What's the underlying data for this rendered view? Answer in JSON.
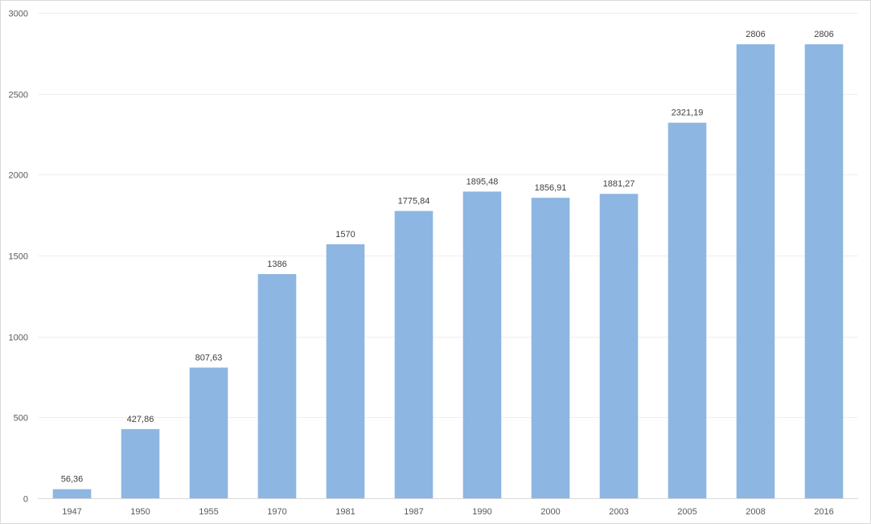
{
  "chart_data": {
    "type": "bar",
    "title": "",
    "xlabel": "",
    "ylabel": "",
    "categories": [
      "1947",
      "1950",
      "1955",
      "1970",
      "1981",
      "1987",
      "1990",
      "2000",
      "2003",
      "2005",
      "2008",
      "2016"
    ],
    "values": [
      56.36,
      427.86,
      807.63,
      1386,
      1570,
      1775.84,
      1895.48,
      1856.91,
      1881.27,
      2321.19,
      2806,
      2806
    ],
    "data_labels": [
      "56,36",
      "427,86",
      "807,63",
      "1386",
      "1570",
      "1775,84",
      "1895,48",
      "1856,91",
      "1881,27",
      "2321,19",
      "2806",
      "2806"
    ],
    "ylim": [
      0,
      3000
    ],
    "yticks": [
      0,
      500,
      1000,
      1500,
      2000,
      2500,
      3000
    ],
    "ytick_labels": [
      "0",
      "500",
      "1000",
      "1500",
      "2000",
      "2500",
      "3000"
    ],
    "grid": true,
    "legend": "none",
    "bar_color": "#8db6e2",
    "grid_color": "#efefef",
    "axis_color": "#d9d9d9"
  }
}
